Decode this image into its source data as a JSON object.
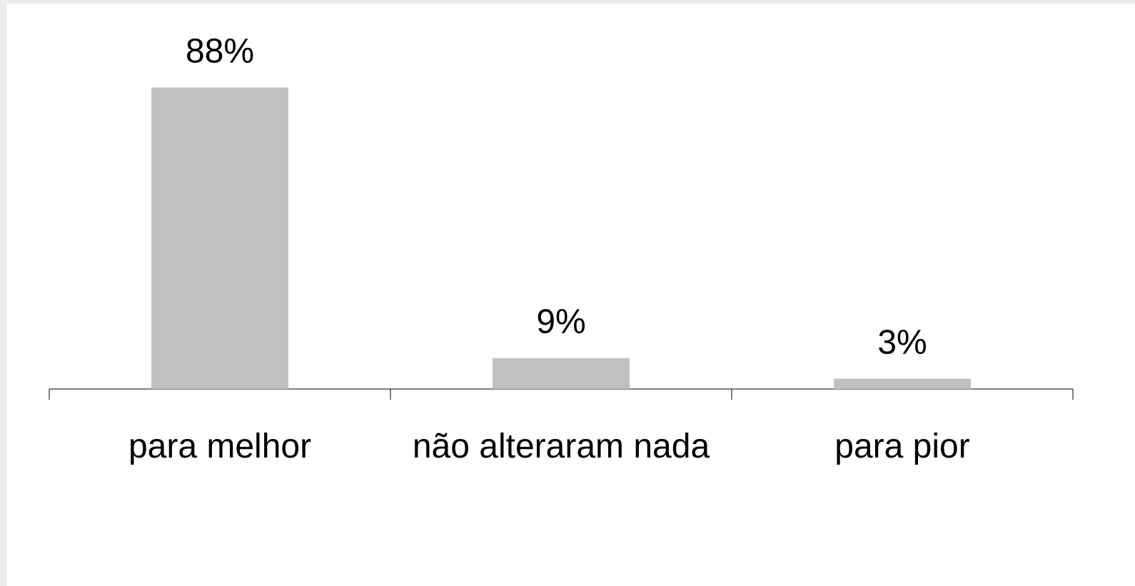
{
  "chart_data": {
    "type": "bar",
    "categories": [
      "para melhor",
      "não alteraram nada",
      "para pior"
    ],
    "values": [
      88,
      9,
      3
    ],
    "value_labels": [
      "88%",
      "9%",
      "3%"
    ],
    "color": "#c0c0c0"
  }
}
